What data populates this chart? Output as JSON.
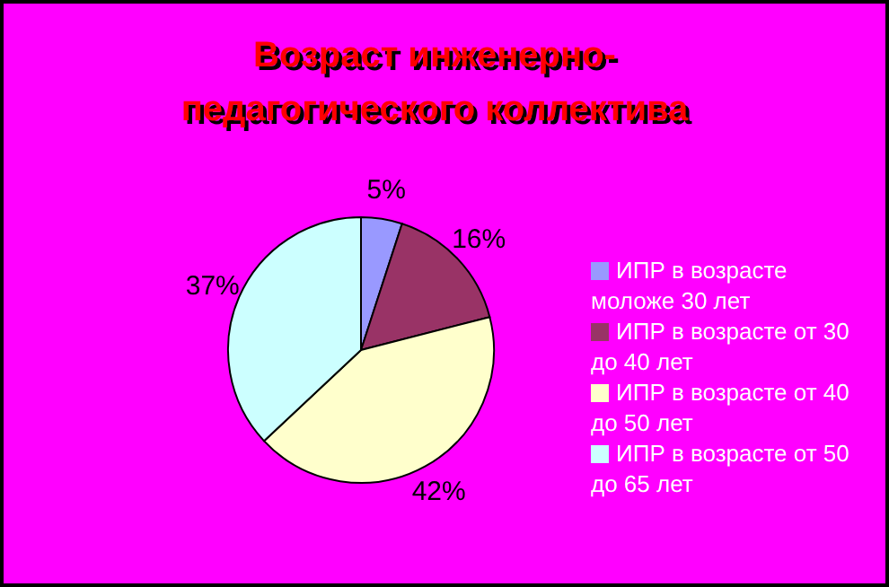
{
  "chart_data": {
    "type": "pie",
    "title": "Возраст инженерно-педагогического коллектива",
    "categories": [
      "ИПР в возрасте моложе 30 лет",
      "ИПР в возрасте от 30 до 40 лет",
      "ИПР в возрасте от 40 до 50 лет",
      "ИПР в возрасте от 50 до 65 лет"
    ],
    "values": [
      5,
      16,
      42,
      37
    ],
    "value_labels": [
      "5%",
      "16%",
      "42%",
      "37%"
    ],
    "colors": [
      "#9999ff",
      "#993366",
      "#ffffcc",
      "#ccffff"
    ],
    "legend": "right"
  }
}
